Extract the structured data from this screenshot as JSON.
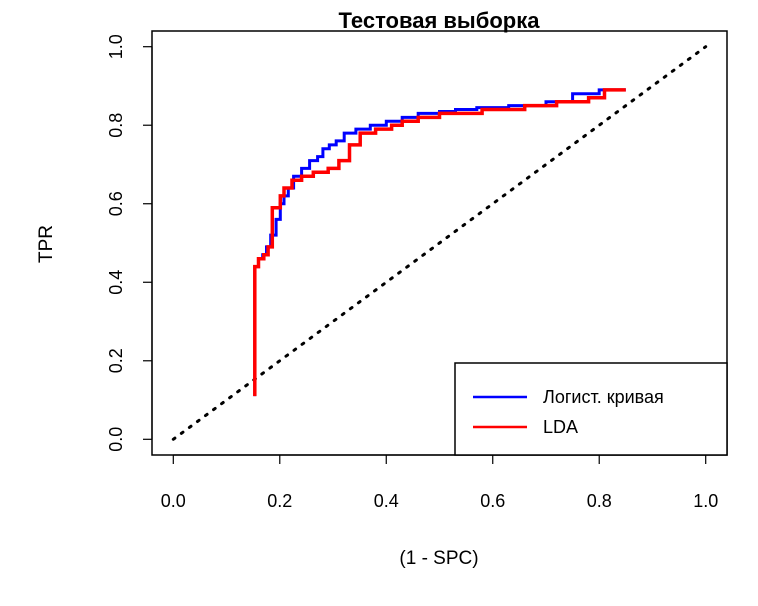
{
  "chart_data": {
    "type": "line",
    "title": "Тестовая выборка",
    "xlabel": "(1 - SPC)",
    "ylabel": "TPR",
    "xlim": [
      -0.04,
      1.04
    ],
    "ylim": [
      -0.04,
      1.04
    ],
    "xticks": [
      0.0,
      0.2,
      0.4,
      0.6,
      0.8,
      1.0
    ],
    "yticks": [
      0.0,
      0.2,
      0.4,
      0.6,
      0.8,
      1.0
    ],
    "xtick_labels": [
      "0.0",
      "0.2",
      "0.4",
      "0.6",
      "0.8",
      "1.0"
    ],
    "ytick_labels": [
      "0.0",
      "0.2",
      "0.4",
      "0.6",
      "0.8",
      "1.0"
    ],
    "grid": false,
    "legend_position": "bottom-right",
    "reference_line": {
      "style": "dotted",
      "color": "#000000",
      "x": [
        0,
        1
      ],
      "y": [
        0,
        1
      ]
    },
    "series": [
      {
        "name": "Логист. кривая",
        "color": "#0000ff",
        "x": [
          0.153,
          0.153,
          0.16,
          0.16,
          0.168,
          0.168,
          0.175,
          0.175,
          0.183,
          0.183,
          0.193,
          0.193,
          0.201,
          0.201,
          0.208,
          0.208,
          0.216,
          0.216,
          0.226,
          0.226,
          0.241,
          0.241,
          0.256,
          0.256,
          0.271,
          0.271,
          0.281,
          0.281,
          0.293,
          0.293,
          0.306,
          0.306,
          0.321,
          0.321,
          0.343,
          0.343,
          0.37,
          0.37,
          0.4,
          0.4,
          0.43,
          0.43,
          0.46,
          0.46,
          0.5,
          0.5,
          0.53,
          0.53,
          0.57,
          0.57,
          0.63,
          0.63,
          0.7,
          0.7,
          0.75,
          0.75,
          0.8,
          0.8,
          0.85
        ],
        "y": [
          0.11,
          0.44,
          0.44,
          0.46,
          0.46,
          0.47,
          0.47,
          0.49,
          0.49,
          0.52,
          0.52,
          0.56,
          0.56,
          0.6,
          0.6,
          0.62,
          0.62,
          0.64,
          0.64,
          0.67,
          0.67,
          0.69,
          0.69,
          0.71,
          0.71,
          0.72,
          0.72,
          0.74,
          0.74,
          0.75,
          0.75,
          0.76,
          0.76,
          0.78,
          0.78,
          0.79,
          0.79,
          0.8,
          0.8,
          0.81,
          0.81,
          0.82,
          0.82,
          0.83,
          0.83,
          0.835,
          0.835,
          0.84,
          0.84,
          0.845,
          0.845,
          0.85,
          0.85,
          0.86,
          0.86,
          0.88,
          0.88,
          0.89,
          0.89
        ]
      },
      {
        "name": "LDA",
        "color": "#ff0000",
        "x": [
          0.153,
          0.153,
          0.16,
          0.16,
          0.17,
          0.17,
          0.178,
          0.178,
          0.186,
          0.186,
          0.201,
          0.201,
          0.208,
          0.208,
          0.223,
          0.223,
          0.241,
          0.241,
          0.263,
          0.263,
          0.291,
          0.291,
          0.311,
          0.311,
          0.331,
          0.331,
          0.351,
          0.351,
          0.38,
          0.38,
          0.41,
          0.41,
          0.43,
          0.43,
          0.46,
          0.46,
          0.5,
          0.5,
          0.58,
          0.58,
          0.66,
          0.66,
          0.72,
          0.72,
          0.78,
          0.78,
          0.81,
          0.81,
          0.85
        ],
        "y": [
          0.11,
          0.44,
          0.44,
          0.46,
          0.46,
          0.47,
          0.47,
          0.49,
          0.49,
          0.59,
          0.59,
          0.62,
          0.62,
          0.64,
          0.64,
          0.66,
          0.66,
          0.67,
          0.67,
          0.68,
          0.68,
          0.69,
          0.69,
          0.71,
          0.71,
          0.75,
          0.75,
          0.78,
          0.78,
          0.79,
          0.79,
          0.8,
          0.8,
          0.81,
          0.81,
          0.82,
          0.82,
          0.83,
          0.83,
          0.84,
          0.84,
          0.85,
          0.85,
          0.86,
          0.86,
          0.87,
          0.87,
          0.89,
          0.89
        ]
      }
    ]
  }
}
